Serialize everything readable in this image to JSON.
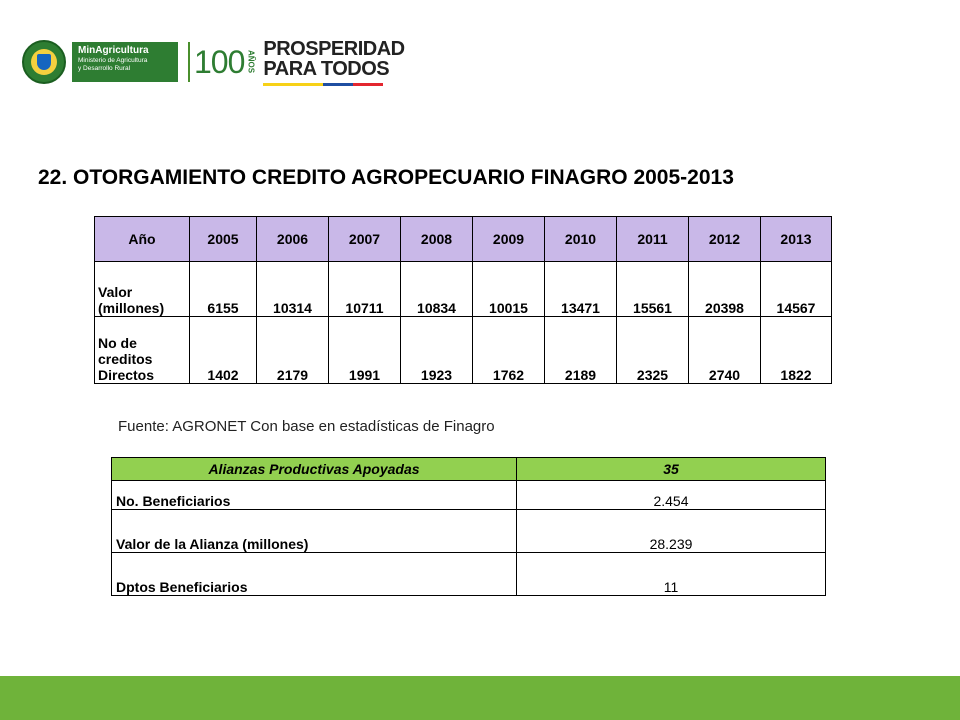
{
  "header": {
    "ministry_name": "MinAgricultura",
    "ministry_sub_1": "Ministerio de Agricultura",
    "ministry_sub_2": "y Desarrollo Rural",
    "anniversary_number": "100",
    "anniversary_word": "AÑOS",
    "slogan_line1": "PROSPERIDAD",
    "slogan_line2": "PARA TODOS",
    "flag_colors": [
      "#f7d117",
      "#f7d117",
      "#1f4ea1",
      "#e3262f"
    ]
  },
  "title": "22. OTORGAMIENTO CREDITO AGROPECUARIO FINAGRO 2005-2013",
  "credit_table": {
    "header_label": "Año",
    "years": [
      "2005",
      "2006",
      "2007",
      "2008",
      "2009",
      "2010",
      "2011",
      "2012",
      "2013"
    ],
    "rows": [
      {
        "label_line1": "Valor",
        "label_line2": "(millones)",
        "values": [
          "6155",
          "10314",
          "10711",
          "10834",
          "10015",
          "13471",
          "15561",
          "20398",
          "14567"
        ]
      },
      {
        "label_line1": "No de",
        "label_line2": "creditos",
        "label_line3": "Directos",
        "values": [
          "1402",
          "2179",
          "1991",
          "1923",
          "1762",
          "2189",
          "2325",
          "2740",
          "1822"
        ]
      }
    ],
    "header_color": "#c9b8e8"
  },
  "source": "Fuente: AGRONET Con base en estadísticas de Finagro",
  "alliances_table": {
    "header_label": "Alianzas Productivas Apoyadas",
    "header_value": "35",
    "header_color": "#92d050",
    "rows": [
      {
        "label": "No. Beneficiarios",
        "value": "2.454"
      },
      {
        "label": "Valor de la Alianza (millones)",
        "value": "28.239"
      },
      {
        "label": "Dptos Beneficiarios",
        "value": "11"
      }
    ]
  },
  "footer_color": "#6fb33a"
}
